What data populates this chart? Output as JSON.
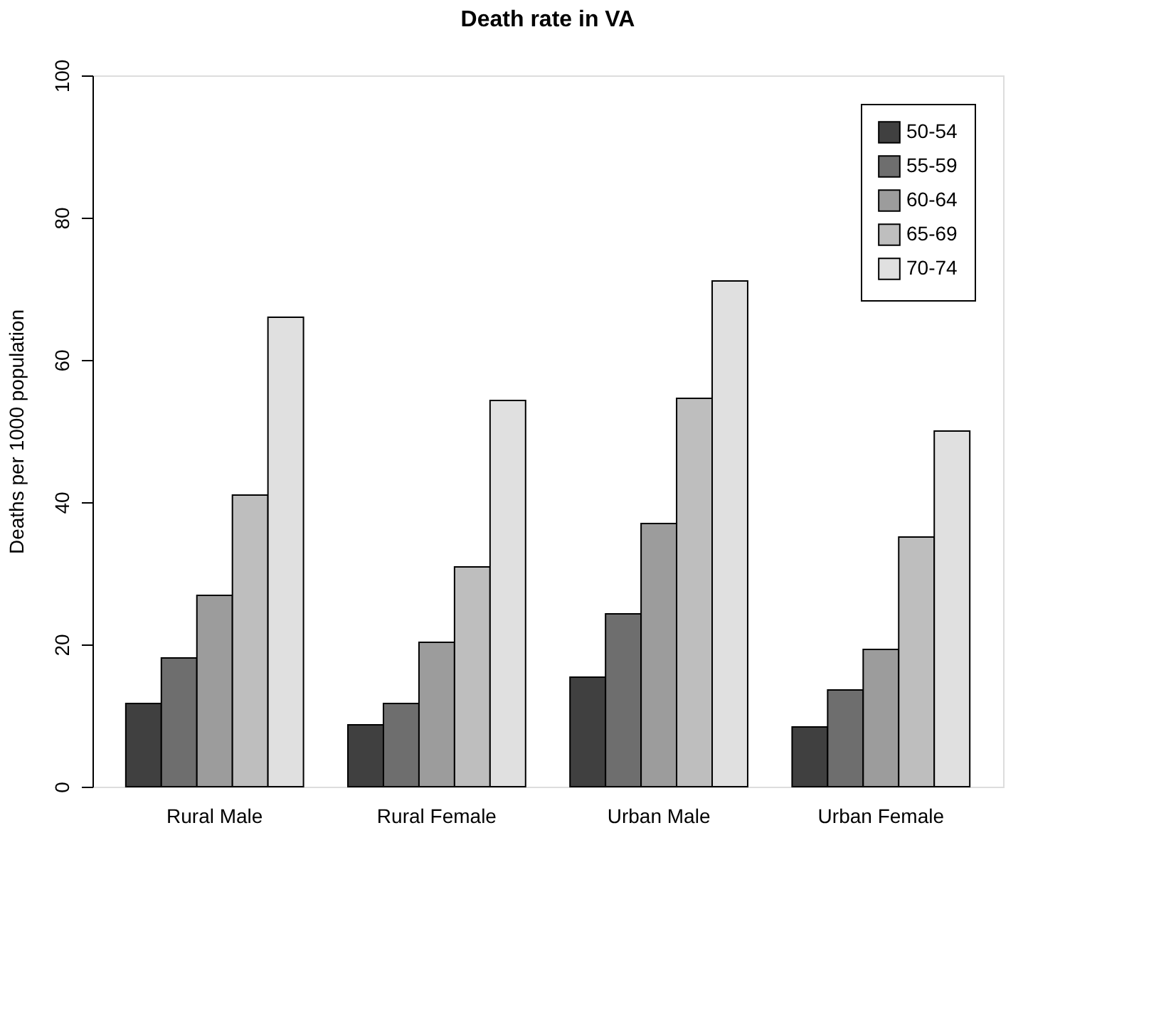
{
  "chart_data": {
    "type": "bar",
    "title": "Death rate in VA",
    "ylabel": "Deaths per 1000 population",
    "categories": [
      "Rural Male",
      "Rural Female",
      "Urban Male",
      "Urban Female"
    ],
    "series": [
      {
        "name": "50-54",
        "color": "#404040",
        "values": [
          11.7,
          8.7,
          15.4,
          8.4
        ]
      },
      {
        "name": "55-59",
        "color": "#6e6e6e",
        "values": [
          18.1,
          11.7,
          24.3,
          13.6
        ]
      },
      {
        "name": "60-64",
        "color": "#9c9c9c",
        "values": [
          26.9,
          20.3,
          37.0,
          19.3
        ]
      },
      {
        "name": "65-69",
        "color": "#bebebe",
        "values": [
          41.0,
          30.9,
          54.6,
          35.1
        ]
      },
      {
        "name": "70-74",
        "color": "#e0e0e0",
        "values": [
          66.0,
          54.3,
          71.1,
          50.0
        ]
      }
    ],
    "ylim": [
      0,
      100
    ],
    "yticks": [
      0,
      20,
      40,
      60,
      80,
      100
    ],
    "grid": false,
    "legend": "top right"
  }
}
